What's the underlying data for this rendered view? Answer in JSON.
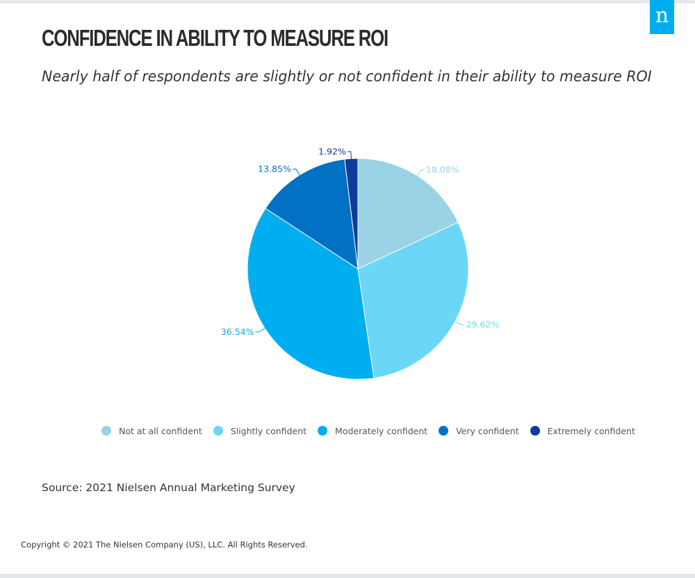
{
  "header": {
    "logo_text": "n",
    "title": "CONFIDENCE IN ABILITY TO MEASURE ROI",
    "subtitle": "Nearly half of respondents are slightly or not confident in their ability to measure ROI"
  },
  "chart_data": {
    "type": "pie",
    "title": "CONFIDENCE IN ABILITY TO MEASURE ROI",
    "subtitle": "Nearly half of respondents are slightly or not confident in their ability to measure ROI",
    "categories": [
      "Not at all confident",
      "Slightly confident",
      "Moderately confident",
      "Very confident",
      "Extremely confident"
    ],
    "values": [
      18.08,
      29.62,
      36.54,
      13.85,
      1.92
    ],
    "labels": [
      "18.08%",
      "29.62%",
      "36.54%",
      "13.85%",
      "1.92%"
    ],
    "colors": [
      "#99d3e5",
      "#6bd6f6",
      "#00aeef",
      "#0271c3",
      "#0c3d9c"
    ],
    "label_colors": [
      "#99d3e5",
      "#6bd6f6",
      "#00aeef",
      "#0271c3",
      "#0c3d9c"
    ],
    "legend_position": "bottom"
  },
  "footer": {
    "source": "Source: 2021 Nielsen Annual Marketing Survey",
    "copyright": "Copyright © 2021 The Nielsen Company (US), LLC. All Rights Reserved."
  }
}
